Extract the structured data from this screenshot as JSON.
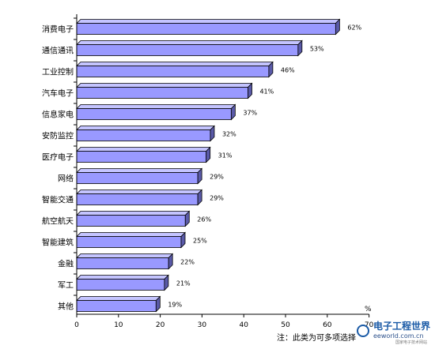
{
  "chart_data": {
    "type": "bar",
    "orientation": "horizontal",
    "categories": [
      "消费电子",
      "通信通讯",
      "工业控制",
      "汽车电子",
      "信息家电",
      "安防监控",
      "医疗电子",
      "网络",
      "智能交通",
      "航空航天",
      "智能建筑",
      "金融",
      "军工",
      "其他"
    ],
    "values": [
      62,
      53,
      46,
      41,
      37,
      32,
      31,
      29,
      29,
      26,
      25,
      22,
      21,
      19
    ],
    "value_labels": [
      "62%",
      "53%",
      "46%",
      "41%",
      "37%",
      "32%",
      "31%",
      "29%",
      "29%",
      "26%",
      "25%",
      "22%",
      "21%",
      "19%"
    ],
    "xlim": [
      0,
      70
    ],
    "xticks": [
      "0",
      "10",
      "20",
      "30",
      "40",
      "50",
      "60",
      "70"
    ],
    "grid": false,
    "bar_color": "#9999ff",
    "bar_side_color": "#5a5aa8",
    "bar_top_color": "#c4c4ff",
    "unit_label": "%",
    "note": "注：此类为可多项选择"
  },
  "watermark": {
    "logo_text": "电子工程世界",
    "site": "eeworld.com.cn",
    "tagline": "国家电子技术网站"
  }
}
